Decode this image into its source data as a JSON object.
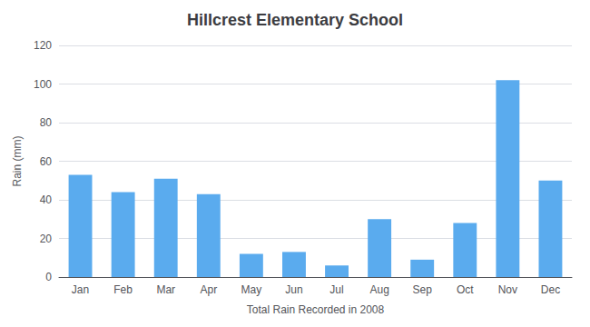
{
  "chart_data": {
    "type": "bar",
    "title": "Hillcrest Elementary School",
    "xlabel": "Total Rain Recorded in 2008",
    "ylabel": "Rain (mm)",
    "categories": [
      "Jan",
      "Feb",
      "Mar",
      "Apr",
      "May",
      "Jun",
      "Jul",
      "Aug",
      "Sep",
      "Oct",
      "Nov",
      "Dec"
    ],
    "values": [
      53,
      44,
      51,
      43,
      12,
      13,
      6,
      30,
      9,
      28,
      102,
      50
    ],
    "color": "#5aabee",
    "ylim": [
      0,
      120
    ],
    "yticks": [
      0,
      20,
      40,
      60,
      80,
      100,
      120
    ],
    "grid": true
  }
}
